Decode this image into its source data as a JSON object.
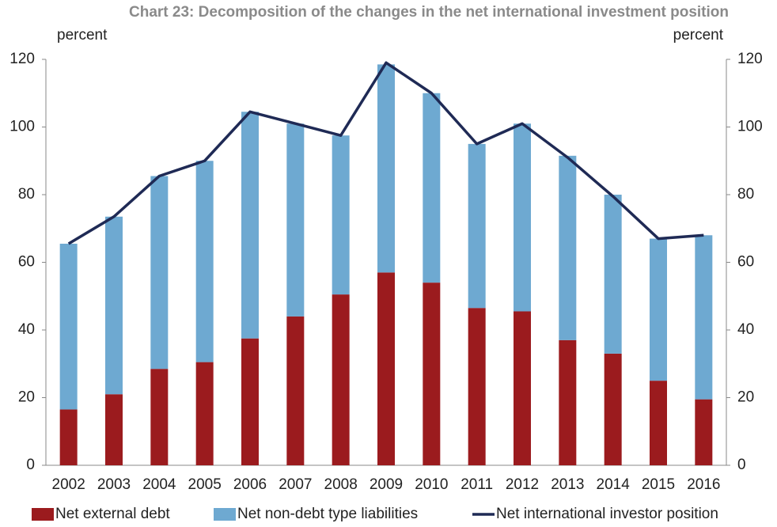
{
  "chart_data": {
    "type": "bar",
    "title": "Chart 23: Decomposition of the changes in the net international investment position",
    "y_label": "percent",
    "y2_label": "percent",
    "categories": [
      "2002",
      "2003",
      "2004",
      "2005",
      "2006",
      "2007",
      "2008",
      "2009",
      "2010",
      "2011",
      "2012",
      "2013",
      "2014",
      "2015",
      "2016"
    ],
    "stacked": true,
    "series": [
      {
        "name": "Net external debt",
        "color": "#9b1b1e",
        "type": "bar",
        "values": [
          16.5,
          21,
          28.5,
          30.5,
          37.5,
          44,
          50.5,
          57,
          54,
          46.5,
          45.5,
          37,
          33,
          25,
          19.5
        ]
      },
      {
        "name": "Net non-debt type liabilities",
        "color": "#6ea9d1",
        "type": "bar",
        "values": [
          49,
          52.5,
          57,
          59.5,
          67,
          57,
          47,
          61.5,
          56,
          48.5,
          55.5,
          54.5,
          47,
          42,
          48.5
        ]
      },
      {
        "name": "Net international investor position",
        "color": "#1f2a55",
        "type": "line",
        "axis": "y2",
        "values": [
          65.5,
          73.5,
          85.5,
          90,
          104.5,
          101,
          97.5,
          119,
          110,
          95,
          101,
          91,
          79.5,
          67,
          68
        ]
      }
    ],
    "ylim": [
      0,
      120
    ],
    "yticks": [
      0,
      20,
      40,
      60,
      80,
      100,
      120
    ],
    "y2lim": [
      0,
      120
    ],
    "y2ticks": [
      0,
      20,
      40,
      60,
      80,
      100,
      120
    ],
    "grid": false
  }
}
